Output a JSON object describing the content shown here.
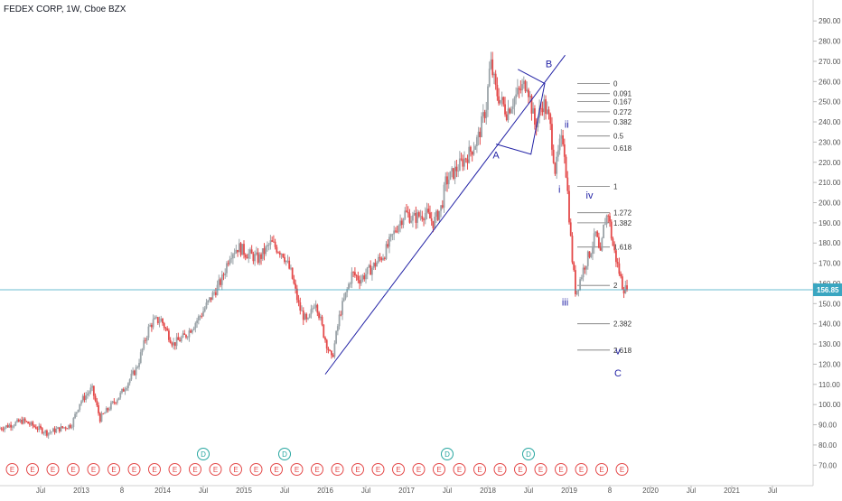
{
  "header": {
    "title": "FEDEX CORP, 1W, Cboe BZX"
  },
  "colors": {
    "up": "#9aa3a8",
    "down": "#e44a4a",
    "price_line": "#3aa6c1",
    "wave": "#2323a6",
    "fib": "#777777",
    "axis_text": "#555555",
    "earnings": "#e44a4a",
    "dividend": "#27a6a0"
  },
  "chart_data": {
    "type": "candlestick",
    "symbol": "FEDEX CORP",
    "interval": "1W",
    "exchange": "Cboe BZX",
    "ylim": [
      67,
      295
    ],
    "y_ticks": [
      70,
      80,
      90,
      100,
      110,
      120,
      130,
      140,
      150,
      160,
      170,
      180,
      190,
      200,
      210,
      220,
      230,
      240,
      250,
      260,
      270,
      280,
      290
    ],
    "x_ticks": [
      {
        "label": "Jul",
        "t": 2012.5
      },
      {
        "label": "2013",
        "t": 2013.0
      },
      {
        "label": "8",
        "t": 2013.5
      },
      {
        "label": "2014",
        "t": 2014.0
      },
      {
        "label": "Jul",
        "t": 2014.5
      },
      {
        "label": "2015",
        "t": 2015.0
      },
      {
        "label": "Jul",
        "t": 2015.5
      },
      {
        "label": "2016",
        "t": 2016.0
      },
      {
        "label": "Jul",
        "t": 2016.5
      },
      {
        "label": "2017",
        "t": 2017.0
      },
      {
        "label": "Jul",
        "t": 2017.5
      },
      {
        "label": "2018",
        "t": 2018.0
      },
      {
        "label": "Jul",
        "t": 2018.5
      },
      {
        "label": "2019",
        "t": 2019.0
      },
      {
        "label": "8",
        "t": 2019.5
      },
      {
        "label": "2020",
        "t": 2020.0
      },
      {
        "label": "Jul",
        "t": 2020.5
      },
      {
        "label": "2021",
        "t": 2021.0
      },
      {
        "label": "Jul",
        "t": 2021.5
      }
    ],
    "xlim": [
      2012.0,
      2022.0
    ],
    "last_price": 156.85,
    "last_price_label": "156.85",
    "price_path": [
      [
        2012.0,
        88
      ],
      [
        2012.3,
        92
      ],
      [
        2012.6,
        86
      ],
      [
        2012.9,
        90
      ],
      [
        2013.0,
        101
      ],
      [
        2013.15,
        108
      ],
      [
        2013.25,
        93
      ],
      [
        2013.5,
        105
      ],
      [
        2013.7,
        118
      ],
      [
        2013.85,
        138
      ],
      [
        2013.9,
        141
      ],
      [
        2014.0,
        142
      ],
      [
        2014.15,
        130
      ],
      [
        2014.3,
        134
      ],
      [
        2014.5,
        145
      ],
      [
        2014.6,
        152
      ],
      [
        2014.75,
        162
      ],
      [
        2014.85,
        175
      ],
      [
        2014.95,
        178
      ],
      [
        2015.05,
        175
      ],
      [
        2015.2,
        172
      ],
      [
        2015.35,
        180
      ],
      [
        2015.5,
        175
      ],
      [
        2015.6,
        165
      ],
      [
        2015.7,
        148
      ],
      [
        2015.8,
        140
      ],
      [
        2015.9,
        152
      ],
      [
        2016.0,
        135
      ],
      [
        2016.1,
        122
      ],
      [
        2016.2,
        145
      ],
      [
        2016.35,
        165
      ],
      [
        2016.45,
        162
      ],
      [
        2016.6,
        168
      ],
      [
        2016.75,
        175
      ],
      [
        2016.9,
        188
      ],
      [
        2017.0,
        195
      ],
      [
        2017.1,
        192
      ],
      [
        2017.25,
        195
      ],
      [
        2017.35,
        190
      ],
      [
        2017.45,
        198
      ],
      [
        2017.5,
        210
      ],
      [
        2017.6,
        215
      ],
      [
        2017.7,
        220
      ],
      [
        2017.8,
        225
      ],
      [
        2017.9,
        232
      ],
      [
        2018.0,
        248
      ],
      [
        2018.05,
        270
      ],
      [
        2018.12,
        255
      ],
      [
        2018.25,
        245
      ],
      [
        2018.35,
        252
      ],
      [
        2018.5,
        260
      ],
      [
        2018.6,
        238
      ],
      [
        2018.7,
        250
      ],
      [
        2018.78,
        240
      ],
      [
        2018.85,
        215
      ],
      [
        2018.9,
        228
      ],
      [
        2018.95,
        232
      ],
      [
        2019.0,
        205
      ],
      [
        2019.05,
        175
      ],
      [
        2019.1,
        155
      ],
      [
        2019.2,
        168
      ],
      [
        2019.3,
        178
      ],
      [
        2019.35,
        185
      ],
      [
        2019.4,
        172
      ],
      [
        2019.45,
        190
      ],
      [
        2019.5,
        195
      ],
      [
        2019.55,
        180
      ],
      [
        2019.62,
        168
      ],
      [
        2019.68,
        158
      ],
      [
        2019.72,
        156.85
      ]
    ],
    "trendline": [
      [
        2016.0,
        115
      ],
      [
        2018.95,
        273
      ]
    ],
    "wave_labels": [
      {
        "text": "A",
        "t": 2018.1,
        "p": 222
      },
      {
        "text": "B",
        "t": 2018.75,
        "p": 267
      },
      {
        "text": "i",
        "t": 2018.88,
        "p": 205
      },
      {
        "text": "ii",
        "t": 2018.97,
        "p": 237
      },
      {
        "text": "iii",
        "t": 2018.95,
        "p": 149
      },
      {
        "text": "iv",
        "t": 2019.25,
        "p": 202
      },
      {
        "text": "v",
        "t": 2019.6,
        "p": 125
      },
      {
        "text": "C",
        "t": 2019.6,
        "p": 114
      }
    ],
    "fib_levels": [
      {
        "label": "0",
        "p": 259
      },
      {
        "label": "0.091",
        "p": 254
      },
      {
        "label": "0.167",
        "p": 250
      },
      {
        "label": "0.272",
        "p": 245
      },
      {
        "label": "0.382",
        "p": 240
      },
      {
        "label": "0.5",
        "p": 233
      },
      {
        "label": "0.618",
        "p": 227
      },
      {
        "label": "1",
        "p": 208
      },
      {
        "label": "1.272",
        "p": 195
      },
      {
        "label": "1.382",
        "p": 190
      },
      {
        "label": "1.618",
        "p": 178
      },
      {
        "label": "2",
        "p": 159
      },
      {
        "label": "2.382",
        "p": 140
      },
      {
        "label": "2.618",
        "p": 127
      }
    ],
    "events": {
      "earnings_label": "E",
      "dividend_label": "D",
      "earnings_t": [
        2012.15,
        2012.4,
        2012.65,
        2012.9,
        2013.15,
        2013.4,
        2013.65,
        2013.9,
        2014.15,
        2014.4,
        2014.65,
        2014.9,
        2015.15,
        2015.4,
        2015.65,
        2015.9,
        2016.15,
        2016.4,
        2016.65,
        2016.9,
        2017.15,
        2017.4,
        2017.65,
        2017.9,
        2018.15,
        2018.4,
        2018.65,
        2018.9,
        2019.15,
        2019.4,
        2019.65
      ],
      "dividend_t": [
        2014.5,
        2015.5,
        2017.5,
        2018.5
      ]
    }
  }
}
